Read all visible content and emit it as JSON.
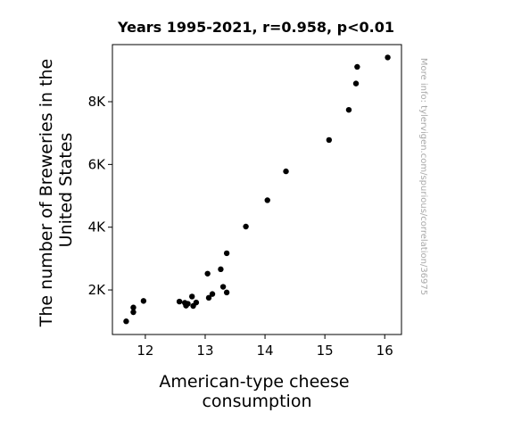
{
  "chart_data": {
    "type": "scatter",
    "title": "Years 1995-2021, r=0.958, p<0.01",
    "xlabel_lines": [
      "American-type cheese",
      "consumption"
    ],
    "ylabel_lines": [
      "The number of Breweries in the",
      "United States"
    ],
    "xlim": [
      11.45,
      16.28
    ],
    "ylim": [
      580,
      9820
    ],
    "x_ticks": [
      12,
      13,
      14,
      15,
      16
    ],
    "x_tick_labels": [
      "12",
      "13",
      "14",
      "15",
      "16"
    ],
    "y_ticks": [
      2000,
      4000,
      6000,
      8000
    ],
    "y_tick_labels": [
      "2K",
      "4K",
      "6K",
      "8K"
    ],
    "grid": false,
    "marker_color": "#000000",
    "points": [
      {
        "x": 11.68,
        "y": 1000
      },
      {
        "x": 11.8,
        "y": 1290
      },
      {
        "x": 11.8,
        "y": 1440
      },
      {
        "x": 11.97,
        "y": 1650
      },
      {
        "x": 12.57,
        "y": 1630
      },
      {
        "x": 12.66,
        "y": 1590
      },
      {
        "x": 12.68,
        "y": 1500
      },
      {
        "x": 12.71,
        "y": 1560
      },
      {
        "x": 12.78,
        "y": 1790
      },
      {
        "x": 12.8,
        "y": 1490
      },
      {
        "x": 12.85,
        "y": 1600
      },
      {
        "x": 13.04,
        "y": 2520
      },
      {
        "x": 13.06,
        "y": 1750
      },
      {
        "x": 13.12,
        "y": 1870
      },
      {
        "x": 13.26,
        "y": 2660
      },
      {
        "x": 13.3,
        "y": 2100
      },
      {
        "x": 13.36,
        "y": 3170
      },
      {
        "x": 13.36,
        "y": 1920
      },
      {
        "x": 13.68,
        "y": 4020
      },
      {
        "x": 14.04,
        "y": 4860
      },
      {
        "x": 14.35,
        "y": 5780
      },
      {
        "x": 15.07,
        "y": 6780
      },
      {
        "x": 15.4,
        "y": 7740
      },
      {
        "x": 15.52,
        "y": 8580
      },
      {
        "x": 15.54,
        "y": 9110
      },
      {
        "x": 16.05,
        "y": 9410
      }
    ]
  },
  "watermark": "More info: tylervigen.com/spurious/correlation/36975"
}
